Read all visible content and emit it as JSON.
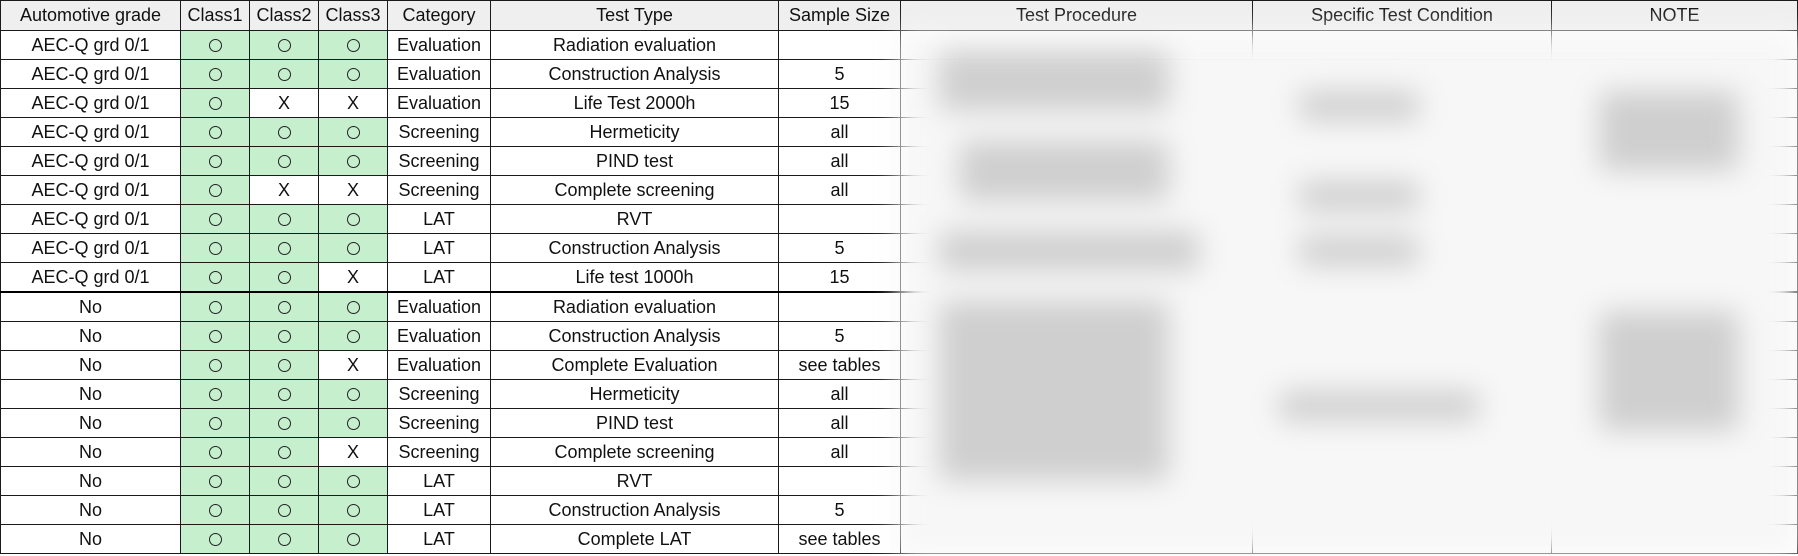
{
  "headers": {
    "automotive_grade": "Automotive grade",
    "class1": "Class1",
    "class2": "Class2",
    "class3": "Class3",
    "category": "Category",
    "test_type": "Test Type",
    "sample_size": "Sample Size",
    "test_procedure": "Test Procedure",
    "specific_test_condition": "Specific Test Condition",
    "note": "NOTE"
  },
  "symbols": {
    "yes": "circle",
    "no": "X"
  },
  "colors": {
    "applicable_cell": "#c6efce",
    "header_bg": "#efefef"
  },
  "rows": [
    {
      "grade": "AEC-Q grd 0/1",
      "c1": "circle",
      "c2": "circle",
      "c3": "circle",
      "category": "Evaluation",
      "test_type": "Radiation evaluation",
      "sample": ""
    },
    {
      "grade": "AEC-Q grd 0/1",
      "c1": "circle",
      "c2": "circle",
      "c3": "circle",
      "category": "Evaluation",
      "test_type": "Construction Analysis",
      "sample": "5"
    },
    {
      "grade": "AEC-Q grd 0/1",
      "c1": "circle",
      "c2": "X",
      "c3": "X",
      "category": "Evaluation",
      "test_type": "Life Test 2000h",
      "sample": "15"
    },
    {
      "grade": "AEC-Q grd 0/1",
      "c1": "circle",
      "c2": "circle",
      "c3": "circle",
      "category": "Screening",
      "test_type": "Hermeticity",
      "sample": "all"
    },
    {
      "grade": "AEC-Q grd 0/1",
      "c1": "circle",
      "c2": "circle",
      "c3": "circle",
      "category": "Screening",
      "test_type": "PIND test",
      "sample": "all"
    },
    {
      "grade": "AEC-Q grd 0/1",
      "c1": "circle",
      "c2": "X",
      "c3": "X",
      "category": "Screening",
      "test_type": "Complete screening",
      "sample": "all"
    },
    {
      "grade": "AEC-Q grd 0/1",
      "c1": "circle",
      "c2": "circle",
      "c3": "circle",
      "category": "LAT",
      "test_type": "RVT",
      "sample": ""
    },
    {
      "grade": "AEC-Q grd 0/1",
      "c1": "circle",
      "c2": "circle",
      "c3": "circle",
      "category": "LAT",
      "test_type": "Construction Analysis",
      "sample": "5"
    },
    {
      "grade": "AEC-Q grd 0/1",
      "c1": "circle",
      "c2": "circle",
      "c3": "X",
      "category": "LAT",
      "test_type": "Life test 1000h",
      "sample": "15"
    },
    {
      "grade": "No",
      "c1": "circle",
      "c2": "circle",
      "c3": "circle",
      "category": "Evaluation",
      "test_type": "Radiation evaluation",
      "sample": ""
    },
    {
      "grade": "No",
      "c1": "circle",
      "c2": "circle",
      "c3": "circle",
      "category": "Evaluation",
      "test_type": "Construction Analysis",
      "sample": "5"
    },
    {
      "grade": "No",
      "c1": "circle",
      "c2": "circle",
      "c3": "X",
      "category": "Evaluation",
      "test_type": "Complete Evaluation",
      "sample": "see tables"
    },
    {
      "grade": "No",
      "c1": "circle",
      "c2": "circle",
      "c3": "circle",
      "category": "Screening",
      "test_type": "Hermeticity",
      "sample": "all"
    },
    {
      "grade": "No",
      "c1": "circle",
      "c2": "circle",
      "c3": "circle",
      "category": "Screening",
      "test_type": "PIND test",
      "sample": "all"
    },
    {
      "grade": "No",
      "c1": "circle",
      "c2": "circle",
      "c3": "X",
      "category": "Screening",
      "test_type": "Complete screening",
      "sample": "all"
    },
    {
      "grade": "No",
      "c1": "circle",
      "c2": "circle",
      "c3": "circle",
      "category": "LAT",
      "test_type": "RVT",
      "sample": ""
    },
    {
      "grade": "No",
      "c1": "circle",
      "c2": "circle",
      "c3": "circle",
      "category": "LAT",
      "test_type": "Construction Analysis",
      "sample": "5"
    },
    {
      "grade": "No",
      "c1": "circle",
      "c2": "circle",
      "c3": "circle",
      "category": "LAT",
      "test_type": "Complete LAT",
      "sample": "see tables"
    }
  ]
}
